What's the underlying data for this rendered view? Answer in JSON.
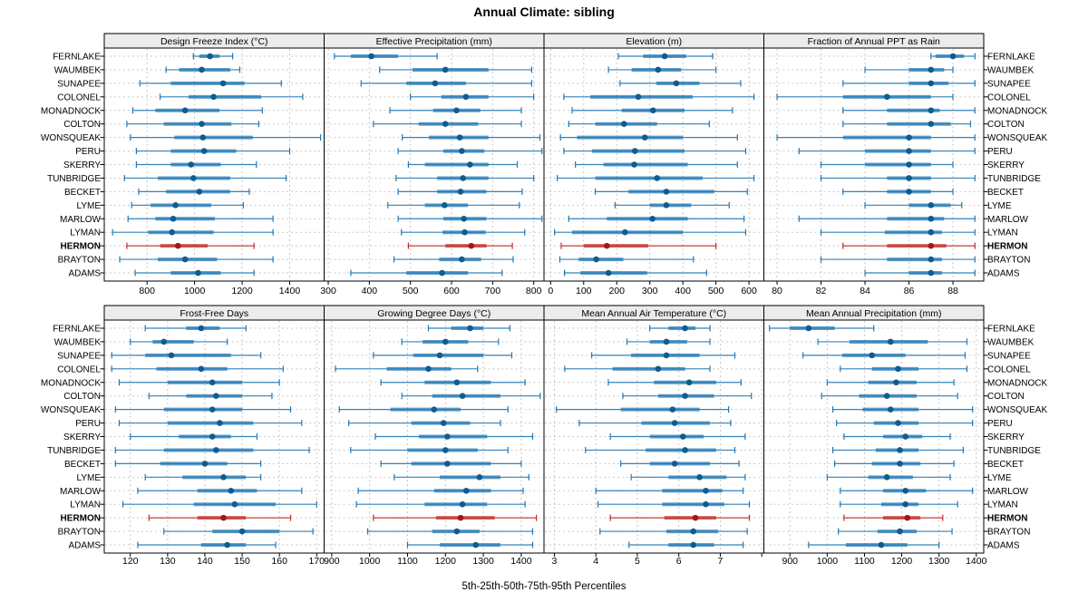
{
  "title": "Annual Climate: sibling",
  "caption": "5th-25th-50th-75th-95th Percentiles",
  "sites": [
    "FERNLAKE",
    "WAUMBEK",
    "SUNAPEE",
    "COLONEL",
    "MONADNOCK",
    "COLTON",
    "WONSQUEAK",
    "PERU",
    "SKERRY",
    "TUNBRIDGE",
    "BECKET",
    "LYME",
    "MARLOW",
    "LYMAN",
    "HERMON",
    "BRAYTON",
    "ADAMS"
  ],
  "highlight_site": "HERMON",
  "colors": {
    "normal_line": "#2077b4",
    "normal_dot": "#0f5c8e",
    "highlight_line": "#c02b27",
    "highlight_dot": "#9e1a18",
    "strip_bg": "#ececec",
    "grid": "#c9c9c9",
    "border": "#000000"
  },
  "chart_data": {
    "type": "dotplot-intervals",
    "percentiles": [
      5,
      25,
      50,
      75,
      95
    ],
    "rows_are_sites": true,
    "legend_position": "none",
    "grid": "dotted both axes",
    "panels": [
      {
        "title": "Design Freeze Index (°C)",
        "row": 0,
        "col": 0,
        "xlim": [
          620,
          1545
        ],
        "ticks": [
          800,
          1000,
          1200,
          1400
        ],
        "minor_ticks": [],
        "series": [
          [
            995,
            1020,
            1065,
            1105,
            1160
          ],
          [
            880,
            935,
            1030,
            1150,
            1190
          ],
          [
            770,
            900,
            1120,
            1210,
            1365
          ],
          [
            855,
            975,
            1080,
            1280,
            1455
          ],
          [
            740,
            835,
            960,
            1105,
            1285
          ],
          [
            715,
            870,
            1030,
            1155,
            1270
          ],
          [
            730,
            915,
            1035,
            1245,
            1530
          ],
          [
            755,
            900,
            1040,
            1175,
            1400
          ],
          [
            755,
            900,
            985,
            1110,
            1260
          ],
          [
            705,
            845,
            995,
            1150,
            1385
          ],
          [
            765,
            880,
            1020,
            1150,
            1230
          ],
          [
            735,
            815,
            920,
            1070,
            1205
          ],
          [
            720,
            835,
            910,
            1085,
            1330
          ],
          [
            655,
            805,
            905,
            1080,
            1330
          ],
          [
            715,
            855,
            930,
            1055,
            1250
          ],
          [
            685,
            845,
            960,
            1095,
            1330
          ],
          [
            750,
            900,
            1015,
            1110,
            1250
          ]
        ]
      },
      {
        "title": "Effective Precipitation (mm)",
        "row": 0,
        "col": 1,
        "xlim": [
          290,
          825
        ],
        "ticks": [
          300,
          400,
          500,
          600,
          700,
          800
        ],
        "minor_ticks": [],
        "series": [
          [
            315,
            355,
            405,
            470,
            565
          ],
          [
            425,
            505,
            585,
            690,
            795
          ],
          [
            380,
            490,
            560,
            635,
            795
          ],
          [
            500,
            575,
            635,
            690,
            800
          ],
          [
            450,
            555,
            612,
            670,
            770
          ],
          [
            410,
            520,
            585,
            665,
            770
          ],
          [
            480,
            545,
            620,
            690,
            815
          ],
          [
            470,
            580,
            625,
            680,
            820
          ],
          [
            495,
            535,
            645,
            690,
            760
          ],
          [
            465,
            565,
            628,
            690,
            800
          ],
          [
            470,
            565,
            622,
            685,
            772
          ],
          [
            445,
            535,
            583,
            640,
            765
          ],
          [
            470,
            580,
            630,
            685,
            820
          ],
          [
            478,
            578,
            632,
            683,
            778
          ],
          [
            495,
            585,
            648,
            685,
            748
          ],
          [
            460,
            570,
            625,
            672,
            750
          ],
          [
            355,
            490,
            577,
            640,
            723
          ]
        ]
      },
      {
        "title": "Elevation (m)",
        "row": 0,
        "col": 2,
        "xlim": [
          -20,
          645
        ],
        "ticks": [
          0,
          100,
          200,
          300,
          400,
          500,
          600
        ],
        "minor_ticks": [],
        "series": [
          [
            205,
            280,
            345,
            410,
            490
          ],
          [
            175,
            245,
            325,
            395,
            500
          ],
          [
            210,
            320,
            380,
            450,
            575
          ],
          [
            40,
            120,
            265,
            430,
            615
          ],
          [
            65,
            215,
            310,
            405,
            550
          ],
          [
            55,
            135,
            222,
            322,
            480
          ],
          [
            30,
            80,
            285,
            400,
            565
          ],
          [
            40,
            125,
            255,
            405,
            590
          ],
          [
            75,
            160,
            253,
            415,
            565
          ],
          [
            20,
            135,
            322,
            460,
            615
          ],
          [
            135,
            235,
            350,
            495,
            595
          ],
          [
            195,
            300,
            350,
            425,
            540
          ],
          [
            55,
            170,
            308,
            415,
            585
          ],
          [
            12,
            65,
            225,
            400,
            590
          ],
          [
            32,
            100,
            170,
            295,
            500
          ],
          [
            28,
            85,
            138,
            220,
            432
          ],
          [
            42,
            90,
            175,
            292,
            472
          ]
        ]
      },
      {
        "title": "Fraction of Annual PPT as Rain",
        "row": 0,
        "col": 3,
        "xlim": [
          79.4,
          89.4
        ],
        "ticks": [
          80,
          82,
          84,
          86,
          88
        ],
        "minor_ticks": [],
        "series": [
          [
            87,
            87.2,
            88,
            88.5,
            89
          ],
          [
            84,
            86,
            87,
            87.6,
            88
          ],
          [
            83,
            86,
            87,
            87.8,
            89
          ],
          [
            80,
            83,
            85,
            87,
            88
          ],
          [
            83,
            85,
            87,
            87.4,
            89
          ],
          [
            83,
            85,
            87,
            87.9,
            88.8
          ],
          [
            80,
            83,
            86,
            87,
            89
          ],
          [
            81,
            84,
            86,
            87,
            89
          ],
          [
            82,
            84,
            86,
            87,
            88
          ],
          [
            82,
            85,
            86,
            87,
            89
          ],
          [
            83,
            85,
            86,
            87,
            88
          ],
          [
            84,
            86,
            87,
            87.9,
            88.4
          ],
          [
            81,
            85,
            87,
            87.6,
            89
          ],
          [
            82,
            84.9,
            87,
            87.5,
            89
          ],
          [
            83,
            85,
            87,
            87.7,
            89
          ],
          [
            82,
            85,
            87,
            87.5,
            89
          ],
          [
            84,
            86,
            87,
            87.5,
            89
          ]
        ]
      },
      {
        "title": "Frost-Free Days",
        "row": 1,
        "col": 0,
        "xlim": [
          113,
          172
        ],
        "ticks": [
          120,
          130,
          140,
          150,
          160,
          170
        ],
        "minor_ticks": [],
        "series": [
          [
            124,
            135,
            139,
            144,
            151
          ],
          [
            120,
            126,
            129,
            137,
            146
          ],
          [
            115,
            124,
            131,
            147,
            155
          ],
          [
            115,
            127,
            139,
            146,
            161
          ],
          [
            117,
            130,
            142,
            150,
            160
          ],
          [
            125,
            135,
            143,
            150,
            158
          ],
          [
            116,
            129,
            142,
            150,
            163
          ],
          [
            117,
            130,
            144,
            153,
            166
          ],
          [
            120,
            133,
            142,
            147,
            154
          ],
          [
            116,
            129,
            143,
            153,
            168
          ],
          [
            116,
            128,
            140,
            146,
            155
          ],
          [
            124,
            134,
            145,
            151,
            155
          ],
          [
            122,
            138,
            147,
            154,
            166
          ],
          [
            118,
            137,
            148,
            159,
            170
          ],
          [
            125,
            138,
            145,
            151,
            163
          ],
          [
            129,
            142,
            150,
            160,
            169
          ],
          [
            122,
            139,
            146,
            151,
            159
          ]
        ]
      },
      {
        "title": "Growing Degree Days (°C)",
        "row": 1,
        "col": 1,
        "xlim": [
          880,
          1460
        ],
        "ticks": [
          900,
          1000,
          1100,
          1200,
          1300,
          1400
        ],
        "minor_ticks": [],
        "series": [
          [
            1155,
            1215,
            1265,
            1300,
            1370
          ],
          [
            1085,
            1140,
            1200,
            1260,
            1340
          ],
          [
            1010,
            1115,
            1185,
            1300,
            1375
          ],
          [
            910,
            1045,
            1155,
            1215,
            1285
          ],
          [
            1030,
            1145,
            1230,
            1320,
            1410
          ],
          [
            1085,
            1165,
            1245,
            1345,
            1450
          ],
          [
            920,
            1055,
            1170,
            1240,
            1365
          ],
          [
            945,
            1110,
            1195,
            1265,
            1345
          ],
          [
            1015,
            1130,
            1205,
            1310,
            1430
          ],
          [
            950,
            1100,
            1200,
            1285,
            1365
          ],
          [
            1030,
            1110,
            1205,
            1320,
            1400
          ],
          [
            1065,
            1185,
            1290,
            1345,
            1420
          ],
          [
            970,
            1170,
            1255,
            1320,
            1405
          ],
          [
            965,
            1145,
            1245,
            1310,
            1410
          ],
          [
            1010,
            1175,
            1240,
            1330,
            1440
          ],
          [
            995,
            1165,
            1230,
            1290,
            1430
          ],
          [
            1100,
            1185,
            1280,
            1345,
            1430
          ]
        ]
      },
      {
        "title": "Mean Annual Air Temperature (°C)",
        "row": 1,
        "col": 2,
        "xlim": [
          2.75,
          8.05
        ],
        "ticks": [
          3,
          4,
          5,
          6,
          7
        ],
        "minor_ticks": [
          8
        ],
        "series": [
          [
            5.3,
            5.75,
            6.15,
            6.4,
            6.75
          ],
          [
            4.75,
            5.3,
            5.7,
            6.2,
            6.75
          ],
          [
            3.9,
            4.85,
            5.7,
            6.5,
            7.35
          ],
          [
            3.25,
            4.4,
            5.5,
            6.15,
            6.75
          ],
          [
            4.3,
            5.4,
            6.25,
            6.9,
            7.5
          ],
          [
            4.65,
            5.5,
            6.15,
            6.85,
            7.75
          ],
          [
            3.05,
            4.6,
            5.85,
            6.5,
            7.2
          ],
          [
            3.6,
            5.1,
            5.9,
            6.75,
            7.25
          ],
          [
            4.35,
            5.3,
            6.1,
            6.6,
            7.6
          ],
          [
            3.75,
            5.2,
            6.15,
            6.9,
            7.35
          ],
          [
            4.6,
            5.3,
            5.9,
            6.75,
            7.45
          ],
          [
            4.85,
            5.75,
            6.5,
            7.15,
            7.6
          ],
          [
            4.0,
            5.6,
            6.65,
            7.05,
            7.55
          ],
          [
            4.05,
            5.6,
            6.65,
            7.1,
            7.7
          ],
          [
            4.35,
            5.65,
            6.4,
            6.9,
            7.7
          ],
          [
            4.1,
            5.7,
            6.35,
            6.95,
            7.65
          ],
          [
            4.8,
            5.75,
            6.35,
            6.85,
            7.55
          ]
        ]
      },
      {
        "title": "Mean Annual Precipitation (mm)",
        "row": 1,
        "col": 3,
        "xlim": [
          830,
          1420
        ],
        "ticks": [
          900,
          1000,
          1100,
          1200,
          1300,
          1400
        ],
        "minor_ticks": [],
        "series": [
          [
            845,
            900,
            950,
            1020,
            1125
          ],
          [
            975,
            1060,
            1170,
            1270,
            1375
          ],
          [
            935,
            1040,
            1120,
            1210,
            1370
          ],
          [
            1035,
            1120,
            1190,
            1245,
            1375
          ],
          [
            1000,
            1110,
            1185,
            1240,
            1340
          ],
          [
            985,
            1085,
            1160,
            1240,
            1350
          ],
          [
            1015,
            1095,
            1170,
            1245,
            1390
          ],
          [
            1025,
            1125,
            1190,
            1245,
            1390
          ],
          [
            1045,
            1150,
            1210,
            1255,
            1330
          ],
          [
            1015,
            1130,
            1195,
            1245,
            1365
          ],
          [
            1020,
            1120,
            1195,
            1250,
            1340
          ],
          [
            1000,
            1110,
            1160,
            1230,
            1330
          ],
          [
            1035,
            1150,
            1210,
            1265,
            1390
          ],
          [
            1035,
            1145,
            1210,
            1245,
            1350
          ],
          [
            1045,
            1150,
            1215,
            1250,
            1310
          ],
          [
            1030,
            1135,
            1195,
            1240,
            1335
          ],
          [
            950,
            1050,
            1145,
            1215,
            1300
          ]
        ]
      }
    ]
  }
}
